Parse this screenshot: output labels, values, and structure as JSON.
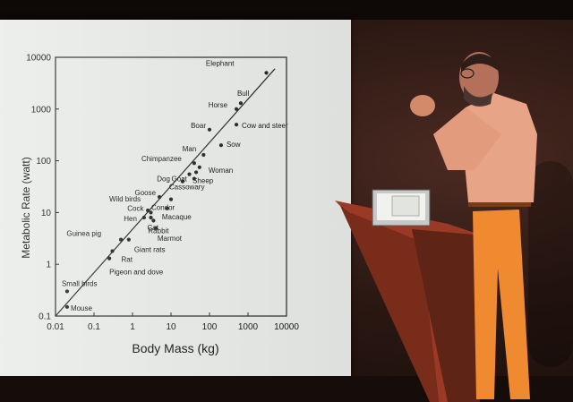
{
  "chart_data": {
    "type": "scatter",
    "xlabel": "Body Mass (kg)",
    "ylabel": "Metabolic Rate (watt)",
    "x_scale": "log",
    "y_scale": "log",
    "xlim": [
      0.01,
      10000
    ],
    "ylim": [
      0.1,
      10000
    ],
    "x_ticks": [
      "0.01",
      "0.1",
      "1",
      "10",
      "100",
      "1000",
      "10000"
    ],
    "y_ticks": [
      "0.1",
      "1",
      "10",
      "100",
      "1000",
      "10000"
    ],
    "fit_line": {
      "x": [
        0.01,
        5000
      ],
      "y": [
        0.1,
        6000
      ]
    },
    "points": [
      {
        "label": "Elephant",
        "x": 3000,
        "y": 5000
      },
      {
        "label": "Horse",
        "x": 500,
        "y": 1000
      },
      {
        "label": "Bull",
        "x": 650,
        "y": 1300
      },
      {
        "label": "Boar",
        "x": 100,
        "y": 400
      },
      {
        "label": "Cow and steer",
        "x": 500,
        "y": 500
      },
      {
        "label": "Man",
        "x": 70,
        "y": 130
      },
      {
        "label": "Sow",
        "x": 200,
        "y": 200
      },
      {
        "label": "Chimpanzee",
        "x": 40,
        "y": 90
      },
      {
        "label": "Woman",
        "x": 55,
        "y": 75
      },
      {
        "label": "Dog",
        "x": 20,
        "y": 40
      },
      {
        "label": "Goat",
        "x": 30,
        "y": 55
      },
      {
        "label": "Sheep",
        "x": 45,
        "y": 60
      },
      {
        "label": "Cassowary",
        "x": 40,
        "y": 45
      },
      {
        "label": "Goose",
        "x": 5,
        "y": 20
      },
      {
        "label": "Wild birds",
        "x": 2.5,
        "y": 11
      },
      {
        "label": "Cock",
        "x": 3,
        "y": 10
      },
      {
        "label": "Hen",
        "x": 2,
        "y": 8
      },
      {
        "label": "Condor",
        "x": 10,
        "y": 18
      },
      {
        "label": "Macaque",
        "x": 8,
        "y": 12
      },
      {
        "label": "Cat",
        "x": 3,
        "y": 8
      },
      {
        "label": "Rabbit",
        "x": 3.5,
        "y": 7
      },
      {
        "label": "Marmot",
        "x": 4,
        "y": 5
      },
      {
        "label": "Guinea pig",
        "x": 0.5,
        "y": 3
      },
      {
        "label": "Rat",
        "x": 0.3,
        "y": 1.8
      },
      {
        "label": "Giant rats",
        "x": 0.8,
        "y": 3
      },
      {
        "label": "Pigeon and dove",
        "x": 0.25,
        "y": 1.3
      },
      {
        "label": "Small birds",
        "x": 0.02,
        "y": 0.3
      },
      {
        "label": "Mouse",
        "x": 0.02,
        "y": 0.15
      }
    ]
  }
}
